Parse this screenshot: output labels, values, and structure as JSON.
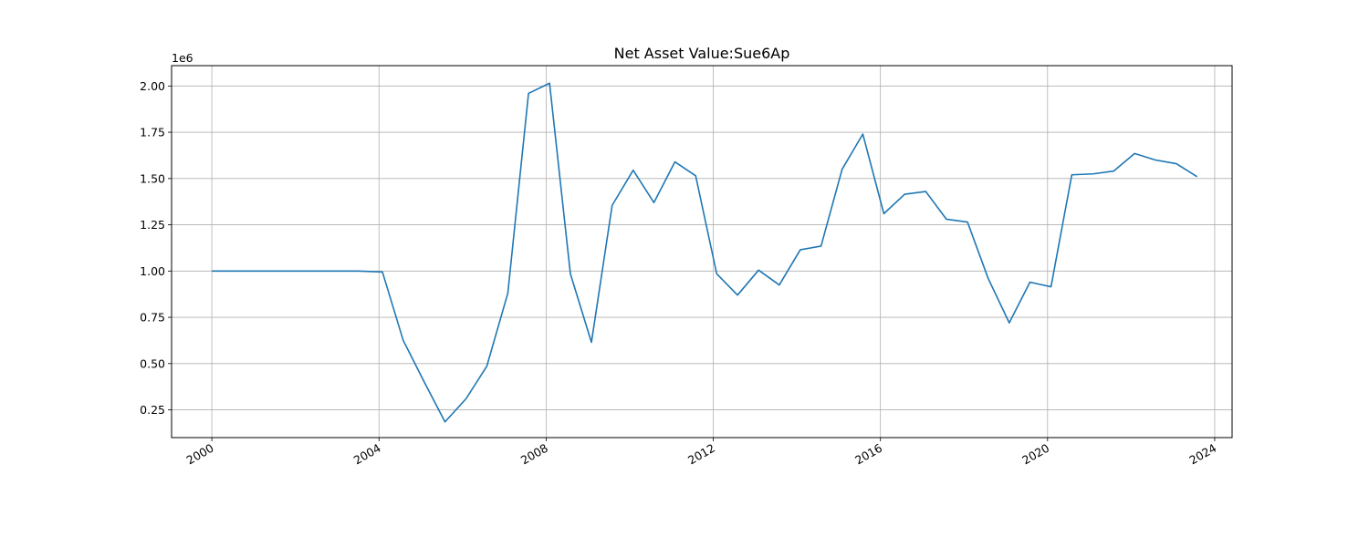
{
  "chart_data": {
    "type": "line",
    "title": "Net Asset Value:Sue6Ap",
    "xlabel": "",
    "ylabel": "",
    "y_offset_label": "1e6",
    "grid": true,
    "xlim": [
      "1999-01-14",
      "2024-06-01"
    ],
    "ylim": [
      0.1,
      2.11
    ],
    "x_ticks": [
      "2000-01-01",
      "2004-01-01",
      "2008-01-01",
      "2012-01-01",
      "2016-01-01",
      "2020-01-01",
      "2024-01-01"
    ],
    "x_tick_labels": [
      "2000",
      "2004",
      "2008",
      "2012",
      "2016",
      "2020",
      "2024"
    ],
    "y_ticks": [
      0.25,
      0.5,
      0.75,
      1.0,
      1.25,
      1.5,
      1.75,
      2.0
    ],
    "y_tick_labels": [
      "0.25",
      "0.50",
      "0.75",
      "1.00",
      "1.25",
      "1.50",
      "1.75",
      "2.00"
    ],
    "series": [
      {
        "color": "#1f77b4",
        "x": [
          "2000-01-01",
          "2003-07-01",
          "2004-01-31",
          "2004-07-31",
          "2005-01-31",
          "2005-07-31",
          "2006-01-31",
          "2006-07-31",
          "2007-01-31",
          "2007-07-31",
          "2008-01-31",
          "2008-07-31",
          "2009-01-31",
          "2009-07-31",
          "2010-01-31",
          "2010-07-31",
          "2011-01-31",
          "2011-07-31",
          "2012-01-31",
          "2012-07-31",
          "2013-01-31",
          "2013-07-31",
          "2014-01-31",
          "2014-07-31",
          "2015-01-31",
          "2015-07-31",
          "2016-01-31",
          "2016-07-31",
          "2017-01-31",
          "2017-07-31",
          "2018-01-31",
          "2018-07-31",
          "2019-01-31",
          "2019-07-31",
          "2020-01-31",
          "2020-07-31",
          "2021-01-31",
          "2021-07-31",
          "2022-01-31",
          "2022-07-31",
          "2023-01-31",
          "2023-07-31"
        ],
        "values": [
          1000000,
          1000000,
          995000,
          625000,
          400000,
          185000,
          310000,
          485000,
          880000,
          1960000,
          2015000,
          985000,
          615000,
          1355000,
          1545000,
          1370000,
          1590000,
          1515000,
          985000,
          870000,
          1005000,
          925000,
          1115000,
          1135000,
          1550000,
          1740000,
          1310000,
          1415000,
          1430000,
          1280000,
          1265000,
          960000,
          720000,
          940000,
          915000,
          1520000,
          1525000,
          1540000,
          1635000,
          1600000,
          1580000,
          1510000
        ]
      }
    ]
  }
}
